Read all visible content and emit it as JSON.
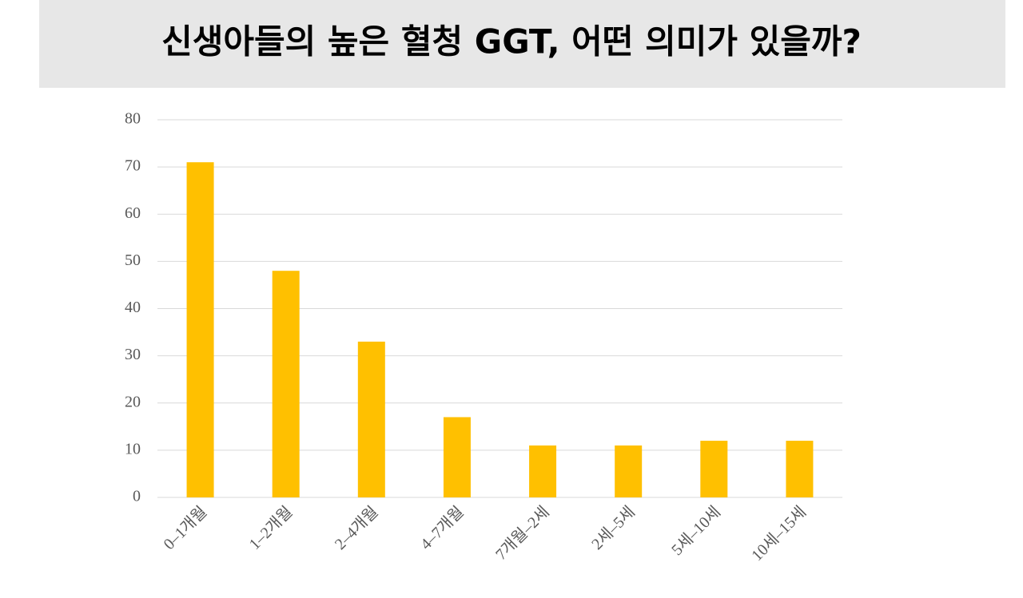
{
  "chart_data": {
    "type": "bar",
    "title": "신생아들의 높은 혈청 GGT, 어떤 의미가 있을까?",
    "categories": [
      "0–1개월",
      "1–2개월",
      "2–4개월",
      "4–7개월",
      "7개월–2세",
      "2세–5세",
      "5세–10세",
      "10세–15세"
    ],
    "values": [
      71,
      48,
      33,
      17,
      11,
      11,
      12,
      12
    ],
    "color": "#ffc000",
    "ylim": [
      0,
      80
    ],
    "yticks": [
      0,
      10,
      20,
      30,
      40,
      50,
      60,
      70,
      80
    ],
    "grid": true
  }
}
